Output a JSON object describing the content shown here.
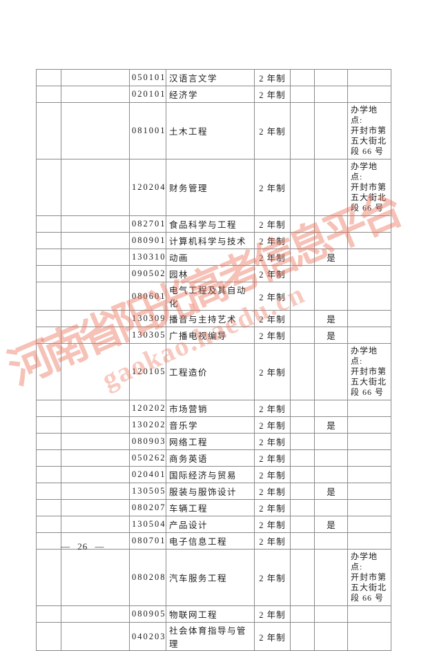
{
  "page": {
    "footer_page_number": "— 26 —"
  },
  "watermark": {
    "text": "河南省阳光高考信息平台",
    "url": "gaokao.haedu.cn",
    "color": "#ea6c52"
  },
  "table": {
    "duration_label_common": "2 年制",
    "note_common": "办学地点:\n开封市第\n五大街北\n段 66 号",
    "rows": [
      {
        "code": "050101",
        "name": "汉语言文学",
        "duration": "2 年制",
        "flag": "",
        "note": ""
      },
      {
        "code": "020101",
        "name": "经济学",
        "duration": "2 年制",
        "flag": "",
        "note": ""
      },
      {
        "code": "081001",
        "name": "土木工程",
        "duration": "2 年制",
        "flag": "",
        "note": "办学地点:\n开封市第\n五大街北\n段 66 号"
      },
      {
        "code": "120204",
        "name": "财务管理",
        "duration": "2 年制",
        "flag": "",
        "note": "办学地点:\n开封市第\n五大街北\n段 66 号"
      },
      {
        "code": "082701",
        "name": "食品科学与工程",
        "duration": "2 年制",
        "flag": "",
        "note": ""
      },
      {
        "code": "080901",
        "name": "计算机科学与技术",
        "duration": "2 年制",
        "flag": "",
        "note": ""
      },
      {
        "code": "130310",
        "name": "动画",
        "duration": "2 年制",
        "flag": "是",
        "note": ""
      },
      {
        "code": "090502",
        "name": "园林",
        "duration": "2 年制",
        "flag": "",
        "note": ""
      },
      {
        "code": "080601",
        "name": "电气工程及其自动化",
        "duration": "2 年制",
        "flag": "",
        "note": ""
      },
      {
        "code": "130309",
        "name": "播音与主持艺术",
        "duration": "2 年制",
        "flag": "是",
        "note": ""
      },
      {
        "code": "130305",
        "name": "广播电视编导",
        "duration": "2 年制",
        "flag": "是",
        "note": ""
      },
      {
        "code": "120105",
        "name": "工程造价",
        "duration": "2 年制",
        "flag": "",
        "note": "办学地点:\n开封市第\n五大街北\n段 66 号"
      },
      {
        "code": "120202",
        "name": "市场营销",
        "duration": "2 年制",
        "flag": "",
        "note": ""
      },
      {
        "code": "130202",
        "name": "音乐学",
        "duration": "2 年制",
        "flag": "是",
        "note": ""
      },
      {
        "code": "080903",
        "name": "网络工程",
        "duration": "2 年制",
        "flag": "",
        "note": ""
      },
      {
        "code": "050262",
        "name": "商务英语",
        "duration": "2 年制",
        "flag": "",
        "note": ""
      },
      {
        "code": "020401",
        "name": "国际经济与贸易",
        "duration": "2 年制",
        "flag": "",
        "note": ""
      },
      {
        "code": "130505",
        "name": "服装与服饰设计",
        "duration": "2 年制",
        "flag": "是",
        "note": ""
      },
      {
        "code": "080207",
        "name": "车辆工程",
        "duration": "2 年制",
        "flag": "",
        "note": ""
      },
      {
        "code": "130504",
        "name": "产品设计",
        "duration": "2 年制",
        "flag": "是",
        "note": ""
      },
      {
        "code": "080701",
        "name": "电子信息工程",
        "duration": "2 年制",
        "flag": "",
        "note": ""
      },
      {
        "code": "080208",
        "name": "汽车服务工程",
        "duration": "2 年制",
        "flag": "",
        "note": "办学地点:\n开封市第\n五大街北\n段 66 号"
      },
      {
        "code": "080905",
        "name": "物联网工程",
        "duration": "2 年制",
        "flag": "",
        "note": ""
      },
      {
        "code": "040203",
        "name": "社会体育指导与管理",
        "duration": "2 年制",
        "flag": "",
        "note": ""
      }
    ]
  }
}
